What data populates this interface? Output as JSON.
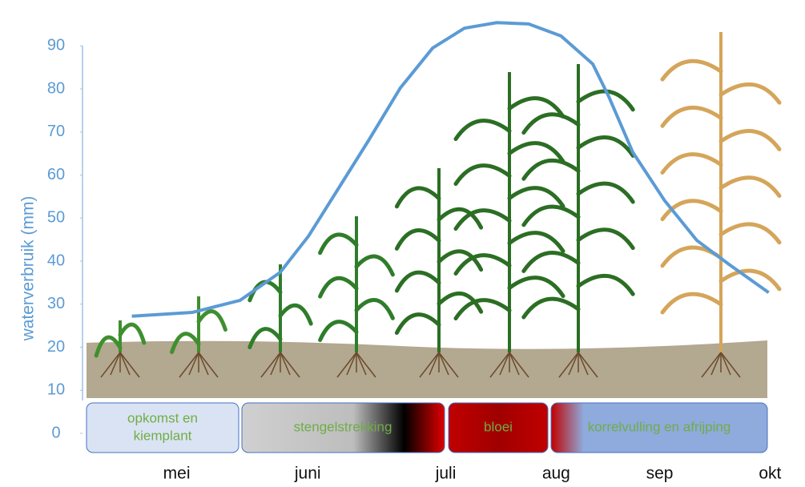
{
  "chart_data": {
    "type": "line",
    "y_label": "waterverbruik (mm)",
    "ylim": [
      0,
      96
    ],
    "yticks": [
      0,
      10,
      20,
      30,
      40,
      50,
      60,
      70,
      80,
      90
    ],
    "xlim": [
      0,
      101
    ],
    "xticks": [
      {
        "value": 14,
        "label": "mei"
      },
      {
        "value": 33,
        "label": "juni"
      },
      {
        "value": 53,
        "label": "juli"
      },
      {
        "value": 69,
        "label": "aug"
      },
      {
        "value": 84,
        "label": "sep"
      },
      {
        "value": 100,
        "label": "okt"
      }
    ],
    "series": [
      {
        "color": "#5b9bd5",
        "x": [
          7.5,
          16.3,
          23.2,
          29,
          33.1,
          37.1,
          41.8,
          46.4,
          51.1,
          55.7,
          60.4,
          65,
          69.7,
          74.3,
          76.6,
          80.1,
          84.7,
          89.4,
          94,
          99.8
        ],
        "values": [
          27.2,
          28.1,
          30.9,
          37.4,
          45.8,
          56,
          68,
          80.2,
          89.5,
          94.1,
          95.4,
          95.1,
          92.3,
          85.8,
          78.3,
          65.3,
          54.1,
          44.8,
          39.3,
          32.7
        ]
      }
    ]
  },
  "phases": [
    {
      "label": [
        "opkomst en",
        "kiemplant"
      ]
    },
    {
      "label": [
        "stengelstrekking"
      ]
    },
    {
      "label": [
        "bloei"
      ]
    },
    {
      "label": [
        "korrelvulling en afrijping"
      ]
    }
  ]
}
